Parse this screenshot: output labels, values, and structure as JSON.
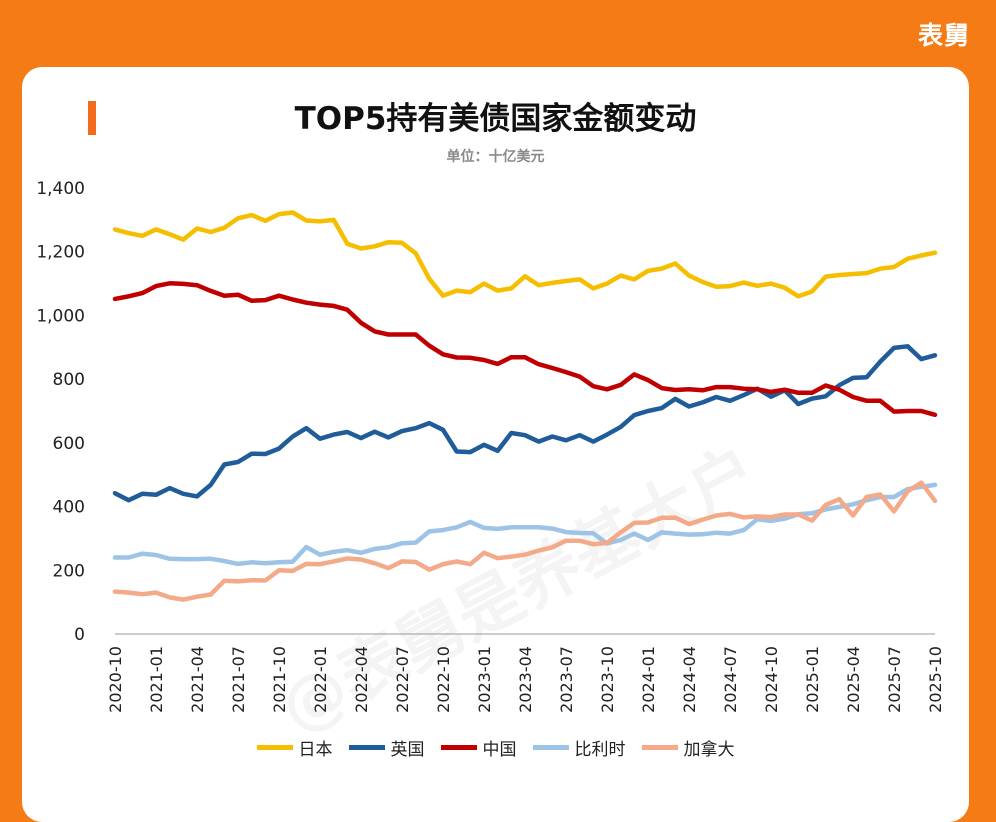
{
  "brand": "表舅",
  "watermark": "@表舅是养基大户",
  "chart_data": {
    "type": "line",
    "title": "TOP5持有美债国家金额变动",
    "subtitle": "单位：十亿美元",
    "ylim": [
      0,
      1400
    ],
    "yticks": [
      "0",
      "200",
      "400",
      "600",
      "800",
      "1,000",
      "1,200",
      "1,400"
    ],
    "ytick_values": [
      0,
      200,
      400,
      600,
      800,
      1000,
      1200,
      1400
    ],
    "grid": false,
    "legend_position": "bottom",
    "x": [
      "2020-10",
      "2020-11",
      "2020-12",
      "2021-01",
      "2021-02",
      "2021-03",
      "2021-04",
      "2021-05",
      "2021-06",
      "2021-07",
      "2021-08",
      "2021-09",
      "2021-10",
      "2021-11",
      "2021-12",
      "2022-01",
      "2022-02",
      "2022-03",
      "2022-04",
      "2022-05",
      "2022-06",
      "2022-07",
      "2022-08",
      "2022-09",
      "2022-10",
      "2022-11",
      "2022-12",
      "2023-01",
      "2023-02",
      "2023-03",
      "2023-04",
      "2023-05",
      "2023-06",
      "2023-07",
      "2023-08",
      "2023-09",
      "2023-10",
      "2023-11",
      "2023-12",
      "2024-01",
      "2024-02",
      "2024-03",
      "2024-04",
      "2024-05",
      "2024-06",
      "2024-07",
      "2024-08",
      "2024-09",
      "2024-10",
      "2024-11",
      "2024-12",
      "2025-01",
      "2025-02",
      "2025-03",
      "2025-04",
      "2025-05",
      "2025-06",
      "2025-07",
      "2025-08",
      "2025-09",
      "2025-10"
    ],
    "xtick_labels": [
      "2020-10",
      "2021-01",
      "2021-04",
      "2021-07",
      "2021-10",
      "2022-01",
      "2022-04",
      "2022-07",
      "2022-10",
      "2023-01",
      "2023-04",
      "2023-07",
      "2023-10",
      "2024-01",
      "2024-04",
      "2024-07",
      "2024-10",
      "2025-01",
      "2025-04",
      "2025-07",
      "2025-10"
    ],
    "series": [
      {
        "name": "日本",
        "color": "#F5BE00",
        "values": [
          1270,
          1258,
          1250,
          1270,
          1255,
          1238,
          1273,
          1262,
          1275,
          1305,
          1315,
          1297,
          1318,
          1323,
          1298,
          1295,
          1300,
          1225,
          1210,
          1217,
          1230,
          1228,
          1195,
          1115,
          1062,
          1078,
          1073,
          1100,
          1078,
          1085,
          1123,
          1095,
          1102,
          1108,
          1113,
          1085,
          1100,
          1125,
          1113,
          1140,
          1147,
          1163,
          1125,
          1105,
          1090,
          1092,
          1103,
          1093,
          1100,
          1087,
          1060,
          1075,
          1122,
          1127,
          1130,
          1133,
          1147,
          1152,
          1178,
          1188,
          1197
        ]
      },
      {
        "name": "英国",
        "color": "#1F5C99",
        "values": [
          442,
          420,
          440,
          437,
          458,
          440,
          432,
          468,
          532,
          540,
          566,
          565,
          582,
          620,
          646,
          613,
          626,
          634,
          615,
          635,
          617,
          637,
          646,
          662,
          641,
          573,
          571,
          594,
          575,
          631,
          624,
          604,
          620,
          608,
          624,
          604,
          626,
          650,
          687,
          700,
          709,
          738,
          714,
          727,
          744,
          732,
          750,
          770,
          745,
          765,
          722,
          739,
          746,
          781,
          804,
          806,
          855,
          898,
          903,
          863,
          875
        ]
      },
      {
        "name": "中国",
        "color": "#C00000",
        "values": [
          1052,
          1060,
          1070,
          1092,
          1101,
          1099,
          1095,
          1077,
          1062,
          1065,
          1046,
          1048,
          1062,
          1050,
          1040,
          1034,
          1030,
          1018,
          977,
          950,
          940,
          940,
          940,
          905,
          878,
          868,
          867,
          860,
          848,
          869,
          869,
          847,
          835,
          822,
          808,
          778,
          768,
          782,
          815,
          797,
          772,
          766,
          768,
          765,
          775,
          775,
          770,
          768,
          760,
          767,
          757,
          757,
          780,
          767,
          744,
          732,
          732,
          698,
          700,
          700,
          688
        ]
      },
      {
        "name": "比利时",
        "color": "#9DC3E6",
        "values": [
          240,
          240,
          252,
          248,
          236,
          235,
          235,
          236,
          229,
          220,
          225,
          222,
          225,
          227,
          273,
          249,
          258,
          263,
          255,
          267,
          272,
          285,
          287,
          322,
          326,
          335,
          352,
          333,
          330,
          335,
          335,
          335,
          331,
          320,
          317,
          316,
          284,
          295,
          315,
          295,
          319,
          315,
          312,
          313,
          318,
          315,
          326,
          360,
          355,
          362,
          376,
          379,
          391,
          399,
          407,
          420,
          430,
          430,
          455,
          462,
          468
        ]
      },
      {
        "name": "加拿大",
        "color": "#F4A989",
        "values": [
          133,
          130,
          125,
          130,
          115,
          108,
          117,
          124,
          167,
          165,
          169,
          168,
          200,
          198,
          220,
          219,
          228,
          237,
          234,
          222,
          207,
          228,
          226,
          202,
          219,
          228,
          219,
          255,
          238,
          243,
          249,
          262,
          272,
          293,
          293,
          282,
          286,
          319,
          349,
          350,
          365,
          365,
          345,
          359,
          372,
          377,
          366,
          369,
          367,
          375,
          375,
          356,
          405,
          423,
          372,
          430,
          438,
          385,
          448,
          475,
          418
        ]
      }
    ]
  }
}
